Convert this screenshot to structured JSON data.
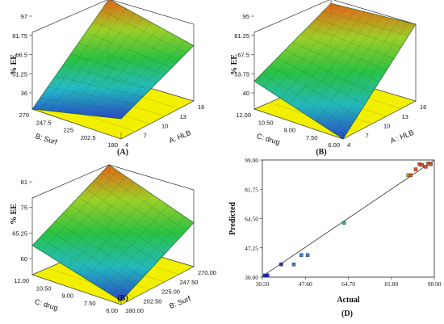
{
  "chart_data": [
    {
      "panel": "A",
      "type": "surface3d",
      "zlabel": "% EE",
      "xlabel": "A: HLB",
      "ylabel": "B: Surf",
      "x_ticks": [
        "4",
        "7",
        "10",
        "13",
        "16"
      ],
      "y_ticks": [
        "270",
        "247.5",
        "225",
        "202.5",
        "180"
      ],
      "z_ticks": [
        "97",
        "81.75",
        "66.5",
        "51.25",
        "36"
      ],
      "zlim": [
        36,
        97
      ],
      "z_corners": {
        "front_left": 52,
        "front_right": 80,
        "back_left": 36,
        "back_right": 97
      },
      "caption": "(A)"
    },
    {
      "panel": "B",
      "type": "surface3d",
      "zlabel": "% EE",
      "xlabel": "A : HLB",
      "ylabel": "C: drug",
      "x_ticks": [
        "4",
        "7",
        "10",
        "13",
        "16"
      ],
      "y_ticks": [
        "12.00",
        "10.50",
        "9.00",
        "7.50",
        "6.00"
      ],
      "z_ticks": [
        "95",
        "81.25",
        "67.5",
        "53.75",
        "40"
      ],
      "zlim": [
        40,
        95
      ],
      "z_corners": {
        "front_left": 40,
        "front_right": 95,
        "back_left": 60,
        "back_right": 92
      },
      "caption": "(B)"
    },
    {
      "panel": "B",
      "type": "surface3d",
      "zlabel": "% EE",
      "xlabel": "B: Surf",
      "ylabel": "C: drug",
      "x_ticks": [
        "180.00",
        "202.50",
        "225.00",
        "247.50",
        "270.00"
      ],
      "y_ticks": [
        "12.00",
        "10.50",
        "9.00",
        "7.50",
        "6.00"
      ],
      "z_ticks": [
        "81",
        "75",
        "65.25",
        "60"
      ],
      "zlim": [
        60,
        81
      ],
      "z_corners": {
        "front_left": 61,
        "front_right": 72,
        "back_left": 68,
        "back_right": 81
      },
      "caption": "(B)"
    },
    {
      "panel": "D",
      "type": "scatter",
      "xlabel": "Actual",
      "ylabel": "Predicted",
      "x_ticks": [
        "30.50",
        "47.60",
        "64.70",
        "81.80",
        "98.90"
      ],
      "y_ticks": [
        "30.00",
        "47.25",
        "64.50",
        "81.75",
        "99.00"
      ],
      "xlim": [
        30.5,
        98.9
      ],
      "ylim": [
        30.0,
        99.0
      ],
      "points": [
        {
          "x": 31.5,
          "y": 31.0
        },
        {
          "x": 32.5,
          "y": 31.0
        },
        {
          "x": 38.0,
          "y": 37.5
        },
        {
          "x": 43.0,
          "y": 37.5
        },
        {
          "x": 46.0,
          "y": 43.0
        },
        {
          "x": 48.5,
          "y": 43.0
        },
        {
          "x": 63.0,
          "y": 62.0
        },
        {
          "x": 88.5,
          "y": 90.0
        },
        {
          "x": 89.5,
          "y": 90.0
        },
        {
          "x": 91.5,
          "y": 93.5
        },
        {
          "x": 93.0,
          "y": 96.5
        },
        {
          "x": 94.0,
          "y": 96.0
        },
        {
          "x": 95.5,
          "y": 95.0
        },
        {
          "x": 96.5,
          "y": 97.0
        },
        {
          "x": 97.5,
          "y": 96.5
        }
      ],
      "caption": "(D)"
    }
  ]
}
